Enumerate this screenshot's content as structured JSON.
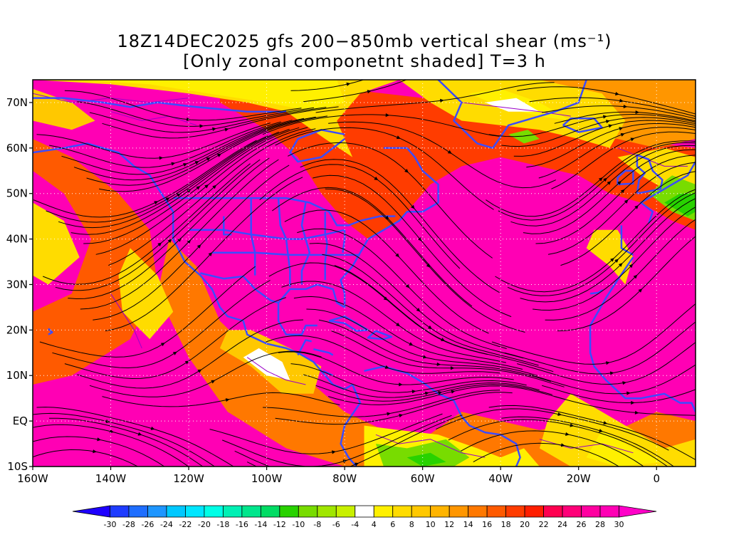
{
  "title": {
    "line1": "18Z14DEC2025 gfs 200−850mb vertical shear (ms⁻¹)",
    "line2": "[Only zonal componetnt shaded] T=3 h"
  },
  "map": {
    "lon_range": [
      -160,
      10
    ],
    "lat_range": [
      -10,
      75
    ],
    "lat_ticks": [
      {
        "lat": 70,
        "label": "70N"
      },
      {
        "lat": 60,
        "label": "60N"
      },
      {
        "lat": 50,
        "label": "50N"
      },
      {
        "lat": 40,
        "label": "40N"
      },
      {
        "lat": 30,
        "label": "30N"
      },
      {
        "lat": 20,
        "label": "20N"
      },
      {
        "lat": 10,
        "label": "10N"
      },
      {
        "lat": 0,
        "label": "EQ"
      },
      {
        "lat": -10,
        "label": "10S"
      }
    ],
    "lon_ticks": [
      {
        "lon": -160,
        "label": "160W"
      },
      {
        "lon": -140,
        "label": "140W"
      },
      {
        "lon": -120,
        "label": "120W"
      },
      {
        "lon": -100,
        "label": "100W"
      },
      {
        "lon": -80,
        "label": "80W"
      },
      {
        "lon": -60,
        "label": "60W"
      },
      {
        "lon": -40,
        "label": "40W"
      },
      {
        "lon": -20,
        "label": "20W"
      },
      {
        "lon": 0,
        "label": "0"
      }
    ],
    "gridlines": "dotted white",
    "coastline_color": "#3b4cff",
    "contour_color": "#9a00c8"
  },
  "colorbar": {
    "labels": [
      "-30",
      "-28",
      "-26",
      "-24",
      "-22",
      "-20",
      "-18",
      "-16",
      "-14",
      "-12",
      "-10",
      "-8",
      "-6",
      "-4",
      "4",
      "6",
      "8",
      "10",
      "12",
      "14",
      "16",
      "18",
      "20",
      "22",
      "24",
      "26",
      "28",
      "30"
    ],
    "colors": [
      "#1e00ff",
      "#1e3cff",
      "#1e6eff",
      "#1e96ff",
      "#00c8ff",
      "#00e6ff",
      "#00ffe6",
      "#00f0b4",
      "#00e68c",
      "#00dc64",
      "#28d200",
      "#78dc00",
      "#a0e600",
      "#c8f000",
      "#ffffff",
      "#fff000",
      "#ffdc00",
      "#ffc800",
      "#ffb400",
      "#ff9600",
      "#ff7800",
      "#ff5a00",
      "#ff3c00",
      "#ff1e00",
      "#ff0050",
      "#ff0078",
      "#ff00a0",
      "#ff00b4",
      "#ff00c8"
    ]
  }
}
